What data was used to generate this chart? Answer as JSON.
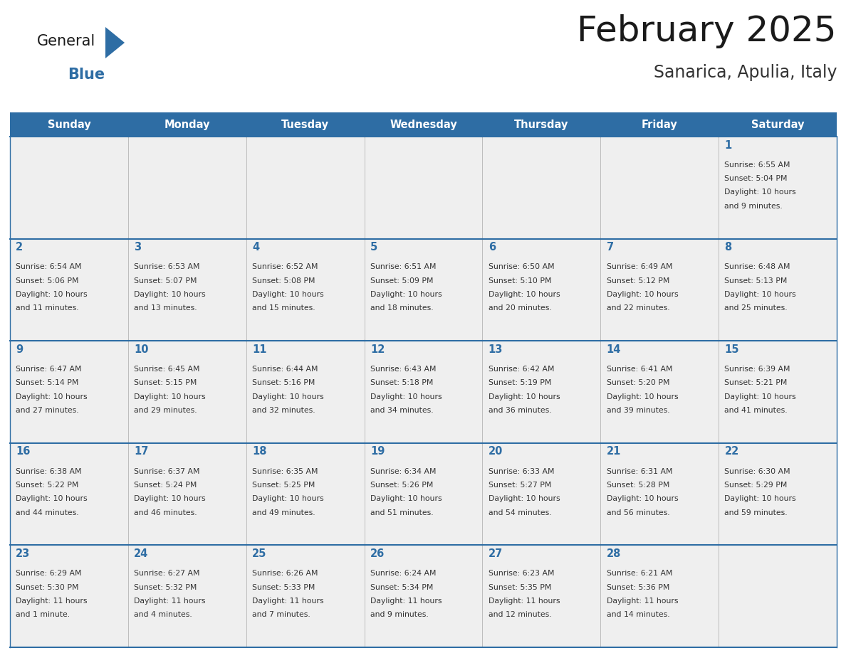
{
  "title": "February 2025",
  "subtitle": "Sanarica, Apulia, Italy",
  "header_bg": "#2E6DA4",
  "header_text_color": "#FFFFFF",
  "cell_bg": "#EFEFEF",
  "cell_line_color": "#2E6DA4",
  "day_headers": [
    "Sunday",
    "Monday",
    "Tuesday",
    "Wednesday",
    "Thursday",
    "Friday",
    "Saturday"
  ],
  "title_color": "#1a1a1a",
  "subtitle_color": "#333333",
  "day_num_color": "#2E6DA4",
  "info_color": "#333333",
  "logo_general_color": "#1a1a1a",
  "logo_blue_color": "#2E6DA4",
  "logo_triangle_color": "#2E6DA4",
  "calendar": [
    [
      null,
      null,
      null,
      null,
      null,
      null,
      {
        "day": 1,
        "sunrise": "6:55 AM",
        "sunset": "5:04 PM",
        "daylight": "10 hours",
        "daylight2": "and 9 minutes."
      }
    ],
    [
      {
        "day": 2,
        "sunrise": "6:54 AM",
        "sunset": "5:06 PM",
        "daylight": "10 hours",
        "daylight2": "and 11 minutes."
      },
      {
        "day": 3,
        "sunrise": "6:53 AM",
        "sunset": "5:07 PM",
        "daylight": "10 hours",
        "daylight2": "and 13 minutes."
      },
      {
        "day": 4,
        "sunrise": "6:52 AM",
        "sunset": "5:08 PM",
        "daylight": "10 hours",
        "daylight2": "and 15 minutes."
      },
      {
        "day": 5,
        "sunrise": "6:51 AM",
        "sunset": "5:09 PM",
        "daylight": "10 hours",
        "daylight2": "and 18 minutes."
      },
      {
        "day": 6,
        "sunrise": "6:50 AM",
        "sunset": "5:10 PM",
        "daylight": "10 hours",
        "daylight2": "and 20 minutes."
      },
      {
        "day": 7,
        "sunrise": "6:49 AM",
        "sunset": "5:12 PM",
        "daylight": "10 hours",
        "daylight2": "and 22 minutes."
      },
      {
        "day": 8,
        "sunrise": "6:48 AM",
        "sunset": "5:13 PM",
        "daylight": "10 hours",
        "daylight2": "and 25 minutes."
      }
    ],
    [
      {
        "day": 9,
        "sunrise": "6:47 AM",
        "sunset": "5:14 PM",
        "daylight": "10 hours",
        "daylight2": "and 27 minutes."
      },
      {
        "day": 10,
        "sunrise": "6:45 AM",
        "sunset": "5:15 PM",
        "daylight": "10 hours",
        "daylight2": "and 29 minutes."
      },
      {
        "day": 11,
        "sunrise": "6:44 AM",
        "sunset": "5:16 PM",
        "daylight": "10 hours",
        "daylight2": "and 32 minutes."
      },
      {
        "day": 12,
        "sunrise": "6:43 AM",
        "sunset": "5:18 PM",
        "daylight": "10 hours",
        "daylight2": "and 34 minutes."
      },
      {
        "day": 13,
        "sunrise": "6:42 AM",
        "sunset": "5:19 PM",
        "daylight": "10 hours",
        "daylight2": "and 36 minutes."
      },
      {
        "day": 14,
        "sunrise": "6:41 AM",
        "sunset": "5:20 PM",
        "daylight": "10 hours",
        "daylight2": "and 39 minutes."
      },
      {
        "day": 15,
        "sunrise": "6:39 AM",
        "sunset": "5:21 PM",
        "daylight": "10 hours",
        "daylight2": "and 41 minutes."
      }
    ],
    [
      {
        "day": 16,
        "sunrise": "6:38 AM",
        "sunset": "5:22 PM",
        "daylight": "10 hours",
        "daylight2": "and 44 minutes."
      },
      {
        "day": 17,
        "sunrise": "6:37 AM",
        "sunset": "5:24 PM",
        "daylight": "10 hours",
        "daylight2": "and 46 minutes."
      },
      {
        "day": 18,
        "sunrise": "6:35 AM",
        "sunset": "5:25 PM",
        "daylight": "10 hours",
        "daylight2": "and 49 minutes."
      },
      {
        "day": 19,
        "sunrise": "6:34 AM",
        "sunset": "5:26 PM",
        "daylight": "10 hours",
        "daylight2": "and 51 minutes."
      },
      {
        "day": 20,
        "sunrise": "6:33 AM",
        "sunset": "5:27 PM",
        "daylight": "10 hours",
        "daylight2": "and 54 minutes."
      },
      {
        "day": 21,
        "sunrise": "6:31 AM",
        "sunset": "5:28 PM",
        "daylight": "10 hours",
        "daylight2": "and 56 minutes."
      },
      {
        "day": 22,
        "sunrise": "6:30 AM",
        "sunset": "5:29 PM",
        "daylight": "10 hours",
        "daylight2": "and 59 minutes."
      }
    ],
    [
      {
        "day": 23,
        "sunrise": "6:29 AM",
        "sunset": "5:30 PM",
        "daylight": "11 hours",
        "daylight2": "and 1 minute."
      },
      {
        "day": 24,
        "sunrise": "6:27 AM",
        "sunset": "5:32 PM",
        "daylight": "11 hours",
        "daylight2": "and 4 minutes."
      },
      {
        "day": 25,
        "sunrise": "6:26 AM",
        "sunset": "5:33 PM",
        "daylight": "11 hours",
        "daylight2": "and 7 minutes."
      },
      {
        "day": 26,
        "sunrise": "6:24 AM",
        "sunset": "5:34 PM",
        "daylight": "11 hours",
        "daylight2": "and 9 minutes."
      },
      {
        "day": 27,
        "sunrise": "6:23 AM",
        "sunset": "5:35 PM",
        "daylight": "11 hours",
        "daylight2": "and 12 minutes."
      },
      {
        "day": 28,
        "sunrise": "6:21 AM",
        "sunset": "5:36 PM",
        "daylight": "11 hours",
        "daylight2": "and 14 minutes."
      },
      null
    ]
  ]
}
